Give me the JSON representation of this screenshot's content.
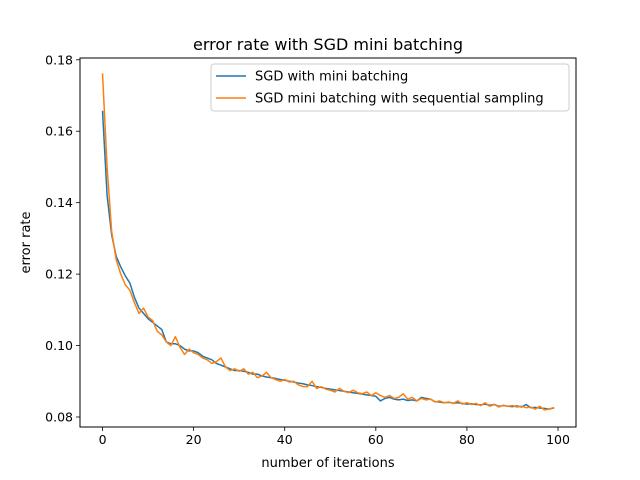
{
  "chart_data": {
    "type": "line",
    "title": "error rate with SGD mini batching",
    "xlabel": "number of iterations",
    "ylabel": "error rate",
    "xlim": [
      -4.95,
      103.95
    ],
    "ylim": [
      0.0772,
      0.1805
    ],
    "xticks": [
      0,
      20,
      40,
      60,
      80,
      100
    ],
    "yticks": [
      0.08,
      0.1,
      0.12,
      0.14,
      0.16,
      0.18
    ],
    "xtick_labels": [
      "0",
      "20",
      "40",
      "60",
      "80",
      "100"
    ],
    "ytick_labels": [
      "0.08",
      "0.10",
      "0.12",
      "0.14",
      "0.16",
      "0.18"
    ],
    "grid": false,
    "legend_position": "top-right",
    "x": [
      0,
      1,
      2,
      3,
      4,
      5,
      6,
      7,
      8,
      9,
      10,
      11,
      12,
      13,
      14,
      15,
      16,
      17,
      18,
      19,
      20,
      21,
      22,
      23,
      24,
      25,
      26,
      27,
      28,
      29,
      30,
      31,
      32,
      33,
      34,
      35,
      36,
      37,
      38,
      39,
      40,
      41,
      42,
      43,
      44,
      45,
      46,
      47,
      48,
      49,
      50,
      51,
      52,
      53,
      54,
      55,
      56,
      57,
      58,
      59,
      60,
      61,
      62,
      63,
      64,
      65,
      66,
      67,
      68,
      69,
      70,
      71,
      72,
      73,
      74,
      75,
      76,
      77,
      78,
      79,
      80,
      81,
      82,
      83,
      84,
      85,
      86,
      87,
      88,
      89,
      90,
      91,
      92,
      93,
      94,
      95,
      96,
      97,
      98,
      99
    ],
    "series": [
      {
        "name": "SGD with mini batching",
        "color": "#1f77b4",
        "values": [
          0.1655,
          0.142,
          0.131,
          0.125,
          0.122,
          0.1195,
          0.1175,
          0.1135,
          0.1105,
          0.109,
          0.1075,
          0.1065,
          0.1055,
          0.1045,
          0.101,
          0.1005,
          0.1005,
          0.1,
          0.099,
          0.0985,
          0.0985,
          0.098,
          0.097,
          0.0965,
          0.096,
          0.095,
          0.0945,
          0.094,
          0.0935,
          0.093,
          0.093,
          0.0928,
          0.0925,
          0.092,
          0.092,
          0.0915,
          0.0912,
          0.091,
          0.0908,
          0.0905,
          0.0903,
          0.09,
          0.0898,
          0.0895,
          0.0893,
          0.089,
          0.0888,
          0.0885,
          0.0883,
          0.088,
          0.0878,
          0.0876,
          0.0874,
          0.0872,
          0.087,
          0.0868,
          0.0866,
          0.0864,
          0.0862,
          0.086,
          0.0858,
          0.0845,
          0.0852,
          0.0855,
          0.085,
          0.0848,
          0.085,
          0.0846,
          0.0848,
          0.0845,
          0.0855,
          0.0852,
          0.085,
          0.0843,
          0.0842,
          0.084,
          0.0841,
          0.0839,
          0.084,
          0.0838,
          0.0836,
          0.0837,
          0.0835,
          0.0834,
          0.0836,
          0.0833,
          0.0835,
          0.083,
          0.0832,
          0.083,
          0.0829,
          0.0831,
          0.0828,
          0.0835,
          0.0826,
          0.0827,
          0.0825,
          0.0824,
          0.0822,
          0.0825
        ]
      },
      {
        "name": "SGD mini batching with sequential sampling",
        "color": "#ff7f0e",
        "values": [
          0.176,
          0.15,
          0.132,
          0.124,
          0.12,
          0.117,
          0.1155,
          0.112,
          0.109,
          0.1105,
          0.108,
          0.107,
          0.104,
          0.103,
          0.101,
          0.1,
          0.1025,
          0.0995,
          0.0975,
          0.099,
          0.098,
          0.0975,
          0.0965,
          0.096,
          0.095,
          0.0955,
          0.0965,
          0.094,
          0.093,
          0.0935,
          0.0928,
          0.0935,
          0.092,
          0.0925,
          0.091,
          0.0915,
          0.0925,
          0.091,
          0.0905,
          0.09,
          0.0905,
          0.0898,
          0.09,
          0.089,
          0.0885,
          0.0885,
          0.09,
          0.088,
          0.0885,
          0.0878,
          0.0875,
          0.087,
          0.088,
          0.0872,
          0.0868,
          0.0875,
          0.0868,
          0.0865,
          0.087,
          0.086,
          0.0868,
          0.086,
          0.0855,
          0.086,
          0.0852,
          0.0855,
          0.0865,
          0.085,
          0.0855,
          0.0845,
          0.0852,
          0.0848,
          0.085,
          0.0842,
          0.0845,
          0.084,
          0.0842,
          0.0838,
          0.0845,
          0.0836,
          0.084,
          0.0835,
          0.0838,
          0.0832,
          0.084,
          0.083,
          0.0835,
          0.0828,
          0.0833,
          0.083,
          0.0832,
          0.0828,
          0.083,
          0.0826,
          0.0828,
          0.0822,
          0.083,
          0.082,
          0.0822,
          0.0826
        ]
      }
    ]
  }
}
